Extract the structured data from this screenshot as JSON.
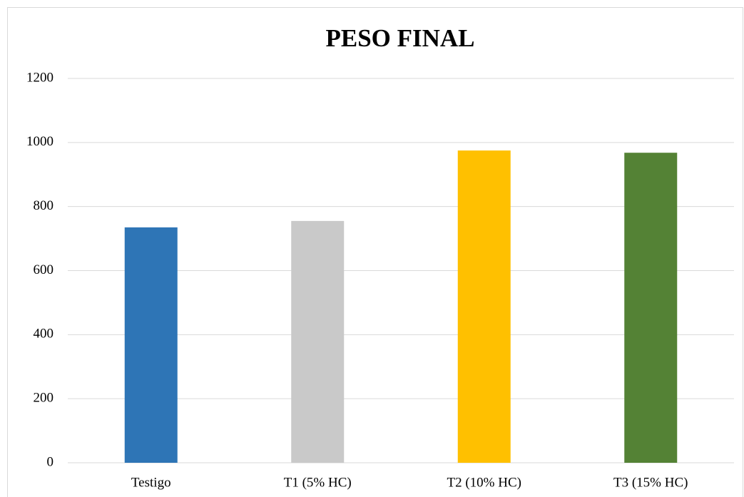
{
  "chart_data": {
    "type": "bar",
    "title": "PESO FINAL",
    "categories": [
      "Testigo",
      "T1 (5% HC)",
      "T2 (10% HC)",
      "T3 (15% HC)"
    ],
    "values": [
      735,
      755,
      975,
      968
    ],
    "colors": [
      "#2e75b6",
      "#c9c9c9",
      "#ffc000",
      "#548235"
    ],
    "ylim": [
      0,
      1200
    ],
    "yticks": [
      0,
      200,
      400,
      600,
      800,
      1000,
      1200
    ],
    "grid": true
  }
}
